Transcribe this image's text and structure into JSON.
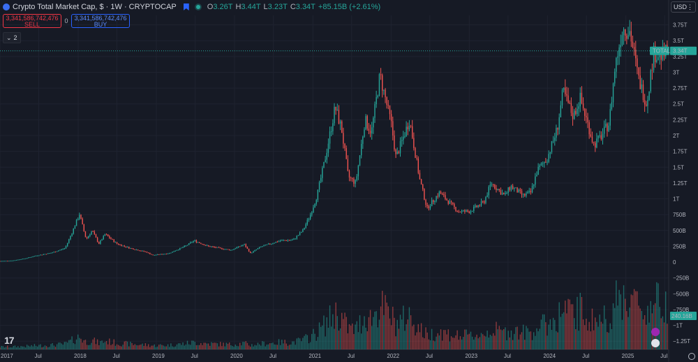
{
  "header": {
    "symbol_title": "Crypto Total Market Cap, $ · 1W · CRYPTOCAP",
    "ohlc": {
      "o_label": "O",
      "o_value": "3.26T",
      "h_label": "H",
      "h_value": "3.44T",
      "l_label": "L",
      "l_value": "3.23T",
      "c_label": "C",
      "c_value": "3.34T",
      "change": "+85.15B (+2.61%)"
    },
    "sell_price": "3,341,586,742,476",
    "sell_label": "SELL",
    "spread": "0",
    "buy_price": "3,341,586,742,476",
    "buy_label": "BUY",
    "indicators_count": "2",
    "currency": "USD"
  },
  "colors": {
    "background": "#161a25",
    "up": "#26a69a",
    "down": "#ef5350",
    "grid": "#1f2330",
    "text": "#b2b5be",
    "last_price_bg": "#26a69a"
  },
  "chart_data": {
    "type": "candlestick",
    "title": "Crypto Total Market Cap, $ · 1W · CRYPTOCAP",
    "x_axis": {
      "tick_labels": [
        "2017",
        "Jul",
        "2018",
        "Jul",
        "2019",
        "Jul",
        "2020",
        "Jul",
        "2021",
        "Jul",
        "2022",
        "Jul",
        "2023",
        "Jul",
        "2024",
        "Jul",
        "2025",
        "Jul"
      ],
      "tick_dates": [
        "2017-01-01",
        "2017-07-01",
        "2018-01-01",
        "2018-07-01",
        "2019-01-01",
        "2019-07-01",
        "2020-01-01",
        "2020-07-01",
        "2021-01-01",
        "2021-07-01",
        "2022-01-01",
        "2022-07-01",
        "2023-01-01",
        "2023-07-01",
        "2024-01-01",
        "2024-07-01",
        "2025-01-01",
        "2025-07-01"
      ],
      "range": [
        "2017-01-01",
        "2025-07-20"
      ]
    },
    "y_axis": {
      "tick_labels": [
        "3.75T",
        "3.5T",
        "3.25T",
        "3T",
        "2.75T",
        "2.5T",
        "2.25T",
        "2T",
        "1.75T",
        "1.5T",
        "1.25T",
        "1T",
        "750B",
        "500B",
        "250B",
        "0",
        "−250B",
        "−500B",
        "−750B",
        "−1T",
        "−1.25T"
      ],
      "tick_values": [
        3.75,
        3.5,
        3.25,
        3,
        2.75,
        2.5,
        2.25,
        2,
        1.75,
        1.5,
        1.25,
        1,
        0.75,
        0.5,
        0.25,
        0,
        -0.25,
        -0.5,
        -0.75,
        -1,
        -1.25
      ],
      "unit": "trillion USD",
      "range": [
        -1.38,
        3.9
      ]
    },
    "price_anchors": [
      [
        "2017-01-01",
        0.018
      ],
      [
        "2017-03-01",
        0.025
      ],
      [
        "2017-05-01",
        0.06
      ],
      [
        "2017-06-15",
        0.1
      ],
      [
        "2017-09-01",
        0.15
      ],
      [
        "2017-11-01",
        0.22
      ],
      [
        "2017-12-01",
        0.45
      ],
      [
        "2018-01-07",
        0.76
      ],
      [
        "2018-02-07",
        0.36
      ],
      [
        "2018-03-07",
        0.5
      ],
      [
        "2018-04-07",
        0.29
      ],
      [
        "2018-05-07",
        0.44
      ],
      [
        "2018-07-01",
        0.29
      ],
      [
        "2018-09-01",
        0.22
      ],
      [
        "2018-11-15",
        0.16
      ],
      [
        "2018-12-15",
        0.11
      ],
      [
        "2019-03-01",
        0.14
      ],
      [
        "2019-05-15",
        0.25
      ],
      [
        "2019-06-26",
        0.34
      ],
      [
        "2019-09-01",
        0.25
      ],
      [
        "2019-12-15",
        0.19
      ],
      [
        "2020-02-15",
        0.28
      ],
      [
        "2020-03-15",
        0.14
      ],
      [
        "2020-05-01",
        0.24
      ],
      [
        "2020-08-01",
        0.34
      ],
      [
        "2020-10-01",
        0.35
      ],
      [
        "2020-11-15",
        0.5
      ],
      [
        "2020-12-20",
        0.75
      ],
      [
        "2021-01-20",
        1.05
      ],
      [
        "2021-02-25",
        1.6
      ],
      [
        "2021-04-15",
        2.45
      ],
      [
        "2021-05-15",
        2.1
      ],
      [
        "2021-06-15",
        1.35
      ],
      [
        "2021-07-20",
        1.25
      ],
      [
        "2021-09-01",
        2.25
      ],
      [
        "2021-10-01",
        2.05
      ],
      [
        "2021-11-10",
        2.95
      ],
      [
        "2022-01-01",
        2.2
      ],
      [
        "2022-01-24",
        1.65
      ],
      [
        "2022-03-28",
        2.25
      ],
      [
        "2022-05-15",
        1.3
      ],
      [
        "2022-06-18",
        0.85
      ],
      [
        "2022-08-15",
        1.1
      ],
      [
        "2022-11-10",
        0.8
      ],
      [
        "2023-01-01",
        0.8
      ],
      [
        "2023-03-10",
        0.95
      ],
      [
        "2023-04-14",
        1.25
      ],
      [
        "2023-06-15",
        1.05
      ],
      [
        "2023-07-14",
        1.2
      ],
      [
        "2023-09-10",
        1.05
      ],
      [
        "2023-10-15",
        1.1
      ],
      [
        "2023-11-15",
        1.45
      ],
      [
        "2024-01-01",
        1.65
      ],
      [
        "2024-02-15",
        2.1
      ],
      [
        "2024-03-14",
        2.7
      ],
      [
        "2024-05-01",
        2.3
      ],
      [
        "2024-06-01",
        2.6
      ],
      [
        "2024-08-05",
        1.85
      ],
      [
        "2024-09-10",
        2.0
      ],
      [
        "2024-10-15",
        2.2
      ],
      [
        "2024-11-12",
        3.1
      ],
      [
        "2024-12-17",
        3.7
      ],
      [
        "2025-01-20",
        3.65
      ],
      [
        "2025-03-01",
        2.9
      ],
      [
        "2025-04-08",
        2.5
      ],
      [
        "2025-05-10",
        3.3
      ],
      [
        "2025-06-22",
        3.25
      ],
      [
        "2025-07-14",
        3.34
      ]
    ],
    "volume_note": "volume bars in lower pane, peaks near 2021-05 and 2024-12",
    "last_price": {
      "symbol": "TOTAL",
      "value": "3.34T",
      "numeric": 3.34
    },
    "last_volume": {
      "value": "240.16B"
    }
  }
}
